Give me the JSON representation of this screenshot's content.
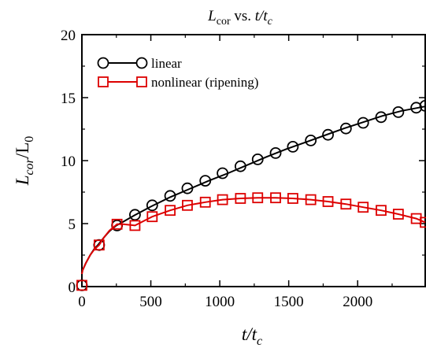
{
  "chart_data": {
    "type": "line",
    "title": {
      "main": "L",
      "sub": "cor",
      "rest": " vs. ",
      "italic": "t/t",
      "italic_sub": "c"
    },
    "xlabel": {
      "main": "t/t",
      "sub": "c"
    },
    "ylabel": {
      "main": "L",
      "sub": "cor",
      "mid": "/L",
      "sub2": "0"
    },
    "xlim": [
      0,
      2490
    ],
    "ylim": [
      0,
      20
    ],
    "xticks": [
      0,
      500,
      1000,
      1500,
      2000
    ],
    "yticks": [
      0,
      5,
      10,
      15,
      20
    ],
    "legend_position": "top-left",
    "grid": false,
    "series": [
      {
        "name": "linear",
        "color": "#000000",
        "marker": "circle",
        "line_x": [
          0,
          5,
          30,
          60,
          90,
          120,
          160,
          200,
          250,
          300,
          380,
          500,
          640,
          780,
          920,
          1060,
          1200,
          1340,
          1480,
          1620,
          1760,
          1900,
          2040,
          2180,
          2320,
          2490
        ],
        "line_y": [
          1.0,
          1.3,
          1.9,
          2.5,
          3.0,
          3.35,
          3.9,
          4.4,
          4.85,
          5.15,
          5.65,
          6.35,
          7.1,
          7.75,
          8.4,
          9.0,
          9.65,
          10.3,
          10.9,
          11.45,
          12.0,
          12.55,
          13.05,
          13.55,
          13.95,
          14.3
        ],
        "marker_x": [
          0,
          125,
          255,
          385,
          510,
          640,
          765,
          895,
          1020,
          1150,
          1275,
          1405,
          1530,
          1660,
          1785,
          1915,
          2040,
          2170,
          2295,
          2425,
          2490
        ],
        "marker_y": [
          0.1,
          3.3,
          4.85,
          5.7,
          6.45,
          7.2,
          7.8,
          8.4,
          9.0,
          9.55,
          10.1,
          10.6,
          11.1,
          11.6,
          12.05,
          12.55,
          13.0,
          13.45,
          13.85,
          14.2,
          14.35
        ]
      },
      {
        "name": "nonlinear (ripening)",
        "color": "#dd0000",
        "marker": "square",
        "line_x": [
          0,
          5,
          30,
          60,
          90,
          125,
          160,
          200,
          255,
          300,
          385,
          510,
          640,
          765,
          895,
          1020,
          1150,
          1275,
          1405,
          1530,
          1660,
          1785,
          1915,
          2040,
          2170,
          2295,
          2425,
          2490
        ],
        "line_y": [
          1.0,
          1.3,
          1.9,
          2.5,
          2.95,
          3.3,
          3.9,
          4.45,
          4.95,
          4.95,
          4.85,
          5.55,
          6.05,
          6.45,
          6.7,
          6.9,
          7.0,
          7.05,
          7.05,
          7.0,
          6.9,
          6.75,
          6.55,
          6.3,
          6.05,
          5.75,
          5.4,
          5.1
        ],
        "marker_x": [
          0,
          125,
          255,
          385,
          510,
          640,
          765,
          895,
          1020,
          1150,
          1275,
          1405,
          1530,
          1660,
          1785,
          1915,
          2040,
          2170,
          2295,
          2425,
          2490
        ],
        "marker_y": [
          0.1,
          3.3,
          4.95,
          4.85,
          5.55,
          6.05,
          6.45,
          6.7,
          6.9,
          7.0,
          7.05,
          7.05,
          7.0,
          6.9,
          6.75,
          6.55,
          6.3,
          6.05,
          5.75,
          5.4,
          5.1
        ]
      }
    ]
  }
}
